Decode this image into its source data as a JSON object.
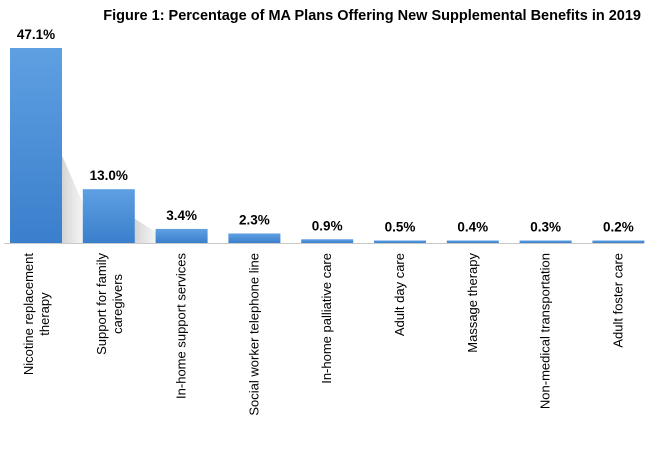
{
  "chart_data": {
    "type": "bar",
    "title": "Figure 1: Percentage of MA Plans Offering New Supplemental Benefits in 2019",
    "xlabel": "",
    "ylabel": "",
    "ylim": [
      0,
      50
    ],
    "grid": false,
    "legend": "none",
    "categories": [
      "Nicotine replacement therapy",
      "Support for family caregivers",
      "In-home support services",
      "Social worker telephone line",
      "In-home palliative care",
      "Adult day care",
      "Massage therapy",
      "Non-medical transportation",
      "Adult foster care"
    ],
    "values": [
      47.1,
      13.0,
      3.4,
      2.3,
      0.9,
      0.5,
      0.4,
      0.3,
      0.2
    ],
    "data_labels": [
      "47.1%",
      "13.0%",
      "3.4%",
      "2.3%",
      "0.9%",
      "0.5%",
      "0.4%",
      "0.3%",
      "0.2%"
    ],
    "bar_color": "#3f87d4",
    "bar_color_light": "#5fa0e2"
  }
}
